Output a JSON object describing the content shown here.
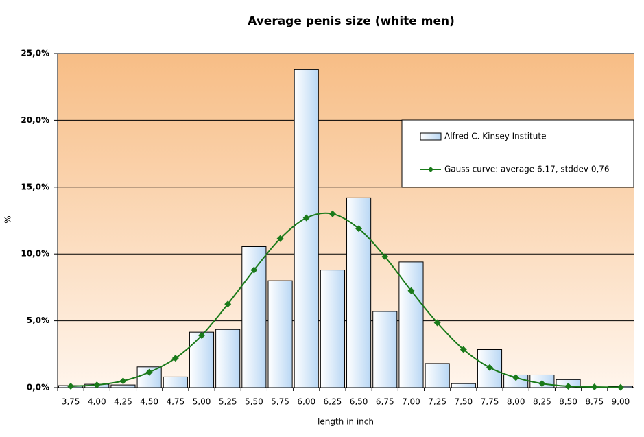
{
  "chart_data": {
    "type": "bar_line",
    "title": "Average penis size (white men)",
    "x_label": "length in inch",
    "y_label": "%",
    "categories": [
      "3,75",
      "4,00",
      "4,25",
      "4,50",
      "4,75",
      "5,00",
      "5,25",
      "5,50",
      "5,75",
      "6,00",
      "6,25",
      "6,50",
      "6,75",
      "7,00",
      "7,25",
      "7,50",
      "7,75",
      "8,00",
      "8,25",
      "8,50",
      "8,75",
      "9,00"
    ],
    "series": [
      {
        "name": "Alfred C. Kinsey Institute",
        "type": "bar",
        "color": "#b9d7f4",
        "values": [
          0.15,
          0.25,
          0.2,
          1.55,
          0.8,
          4.15,
          4.35,
          10.55,
          8.0,
          23.8,
          8.8,
          14.2,
          5.7,
          9.4,
          1.8,
          0.3,
          2.85,
          0.95,
          0.95,
          0.6,
          0,
          0.1
        ]
      },
      {
        "name": "Gauss curve: average 6.17, stddev 0,76",
        "type": "line",
        "color": "#1a7a1a",
        "values": [
          0.1,
          0.2,
          0.5,
          1.15,
          2.2,
          3.9,
          6.25,
          8.8,
          11.15,
          12.7,
          13.0,
          11.9,
          9.8,
          7.25,
          4.85,
          2.85,
          1.5,
          0.75,
          0.3,
          0.1,
          0.05,
          0.02
        ]
      }
    ],
    "ylim": [
      0,
      25
    ],
    "yticks": [
      {
        "value": 0,
        "label": "0,0%"
      },
      {
        "value": 5,
        "label": "5,0%"
      },
      {
        "value": 10,
        "label": "10,0%"
      },
      {
        "value": 15,
        "label": "15,0%"
      },
      {
        "value": 20,
        "label": "20,0%"
      },
      {
        "value": 25,
        "label": "25,0%"
      }
    ],
    "grid": true,
    "legend": "upper right"
  }
}
